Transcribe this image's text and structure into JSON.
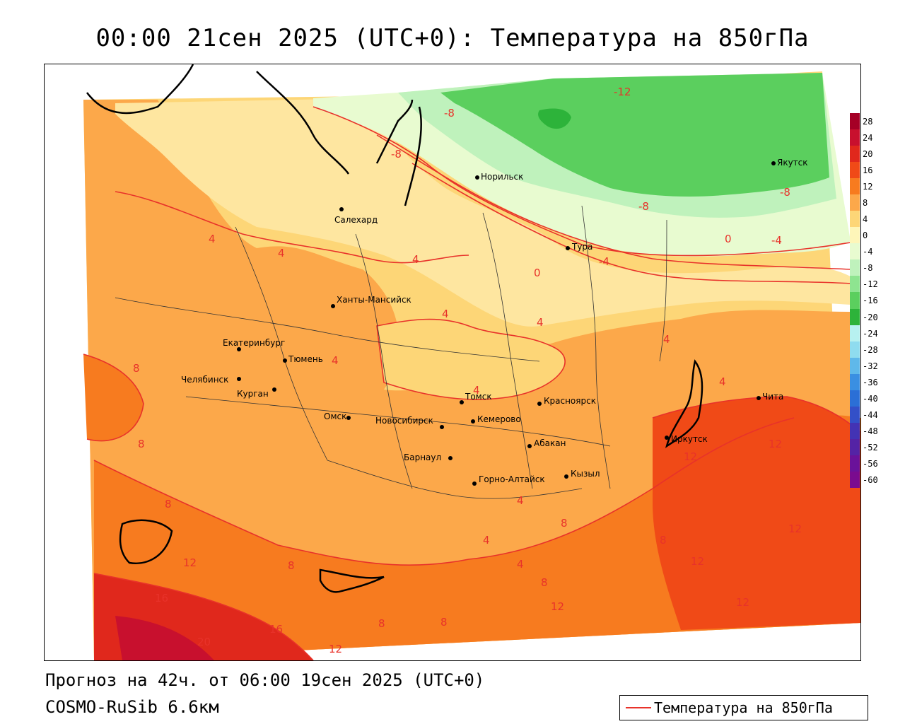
{
  "title": "00:00 21сен 2025 (UTC+0): Температура на 850гПа",
  "footer": {
    "forecast": "Прогноз на 42ч. от 06:00 19сен 2025 (UTC+0)",
    "model": "COSMO-RuSib 6.6км"
  },
  "legend": {
    "line_label": "Температура на 850гПа",
    "line_color": "#e8322a"
  },
  "colorbar": {
    "labels": [
      "28",
      "24",
      "20",
      "16",
      "12",
      "8",
      "4",
      "0",
      "-4",
      "-8",
      "-12",
      "-16",
      "-20",
      "-24",
      "-28",
      "-32",
      "-36",
      "-40",
      "-44",
      "-48",
      "-52",
      "-56",
      "-60"
    ],
    "colors": [
      "#a50026",
      "#c8102e",
      "#e0281c",
      "#f04a17",
      "#f77b1f",
      "#fca84a",
      "#fdd677",
      "#fef6b9",
      "#e8fbd0",
      "#bff2bc",
      "#8ee490",
      "#5bcf5e",
      "#2db33a",
      "#b7f1f0",
      "#8fdcef",
      "#5fb8ea",
      "#3a8fe2",
      "#2b6fd6",
      "#3350c8",
      "#4333b4",
      "#5423a5",
      "#6a129a",
      "#7a0b8f"
    ]
  },
  "cities": [
    {
      "name": "Салехард"
    },
    {
      "name": "Норильск"
    },
    {
      "name": "Якутск"
    },
    {
      "name": "Тура"
    },
    {
      "name": "Ханты-Мансийск"
    },
    {
      "name": "Екатеринбург"
    },
    {
      "name": "Тюмень"
    },
    {
      "name": "Челябинск"
    },
    {
      "name": "Курган"
    },
    {
      "name": "Омск"
    },
    {
      "name": "Новосибирск"
    },
    {
      "name": "Томск"
    },
    {
      "name": "Кемерово"
    },
    {
      "name": "Красноярск"
    },
    {
      "name": "Барнаул"
    },
    {
      "name": "Абакан"
    },
    {
      "name": "Горно-Алтайск"
    },
    {
      "name": "Кызыл"
    },
    {
      "name": "Иркутск"
    },
    {
      "name": "Чита"
    }
  ],
  "contour_labels": [
    "-12",
    "-8",
    "-8",
    "-8",
    "-8",
    "-4",
    "-4",
    "0",
    "0",
    "4",
    "4",
    "4",
    "4",
    "4",
    "4",
    "4",
    "4",
    "4",
    "4",
    "4",
    "4",
    "8",
    "8",
    "8",
    "8",
    "8",
    "8",
    "8",
    "8",
    "8",
    "12",
    "12",
    "12",
    "12",
    "12",
    "12",
    "12",
    "12",
    "16",
    "16",
    "20"
  ]
}
